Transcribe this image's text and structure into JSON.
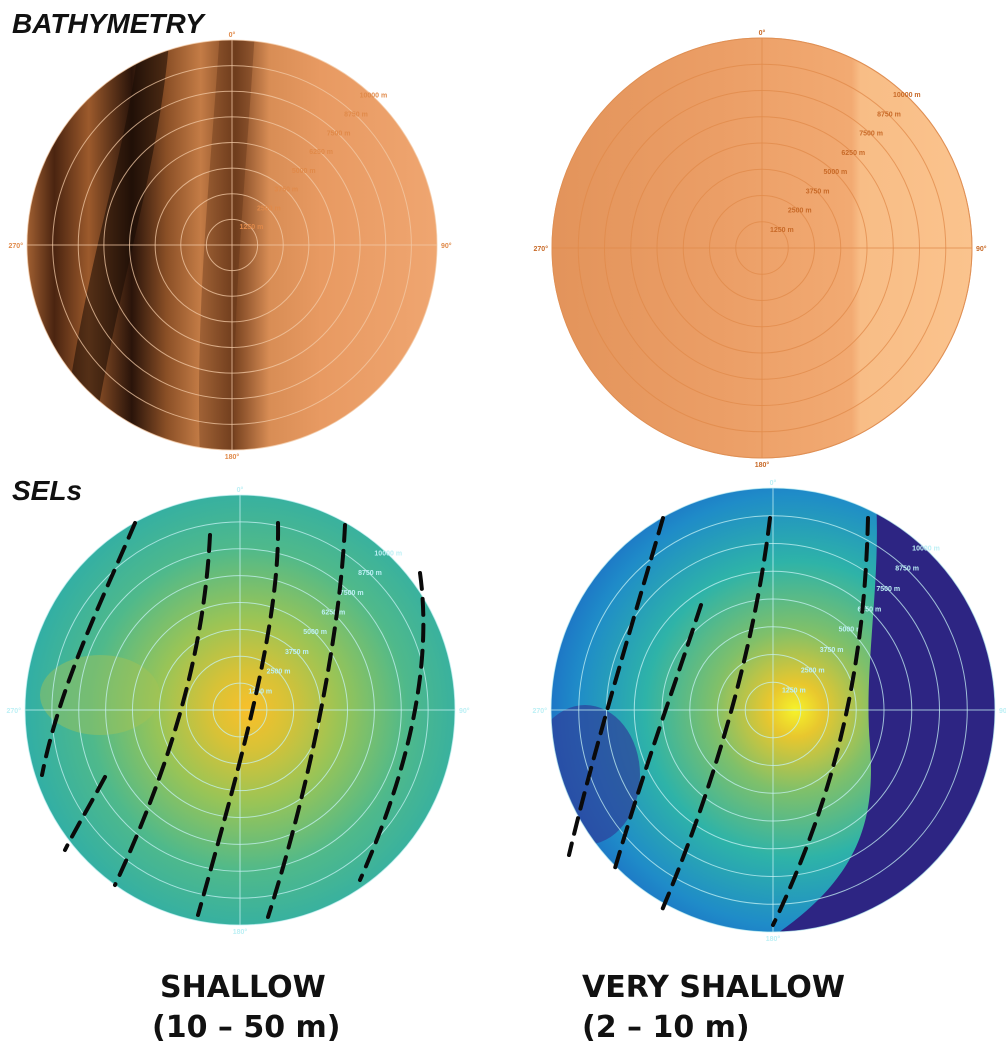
{
  "labels": {
    "bathymetry": "BATHYMETRY",
    "sels": "SELs"
  },
  "captions": {
    "shallow_title": "SHALLOW",
    "shallow_range": "(10 – 50 m)",
    "very_shallow_title": "VERY SHALLOW",
    "very_shallow_range": "(2 – 10 m)"
  },
  "polar": {
    "ring_labels": [
      "1250 m",
      "2500 m",
      "3750 m",
      "5000 m",
      "6250 m",
      "7500 m",
      "8750 m",
      "10000 m"
    ],
    "angle_labels": {
      "north": "0°",
      "east": "90°",
      "south": "180°",
      "west": "270°"
    }
  },
  "colors": {
    "bathy_light": "#f0a772",
    "bathy_dark": "#1a0d05",
    "bathy_label": "#e08a4a",
    "sel_teal": "#27b5b0",
    "sel_yellow": "#f9d12a",
    "sel_blue": "#1b5fc4",
    "sel_darkpurple": "#2d2583",
    "sel_label": "#9fe6ee"
  }
}
